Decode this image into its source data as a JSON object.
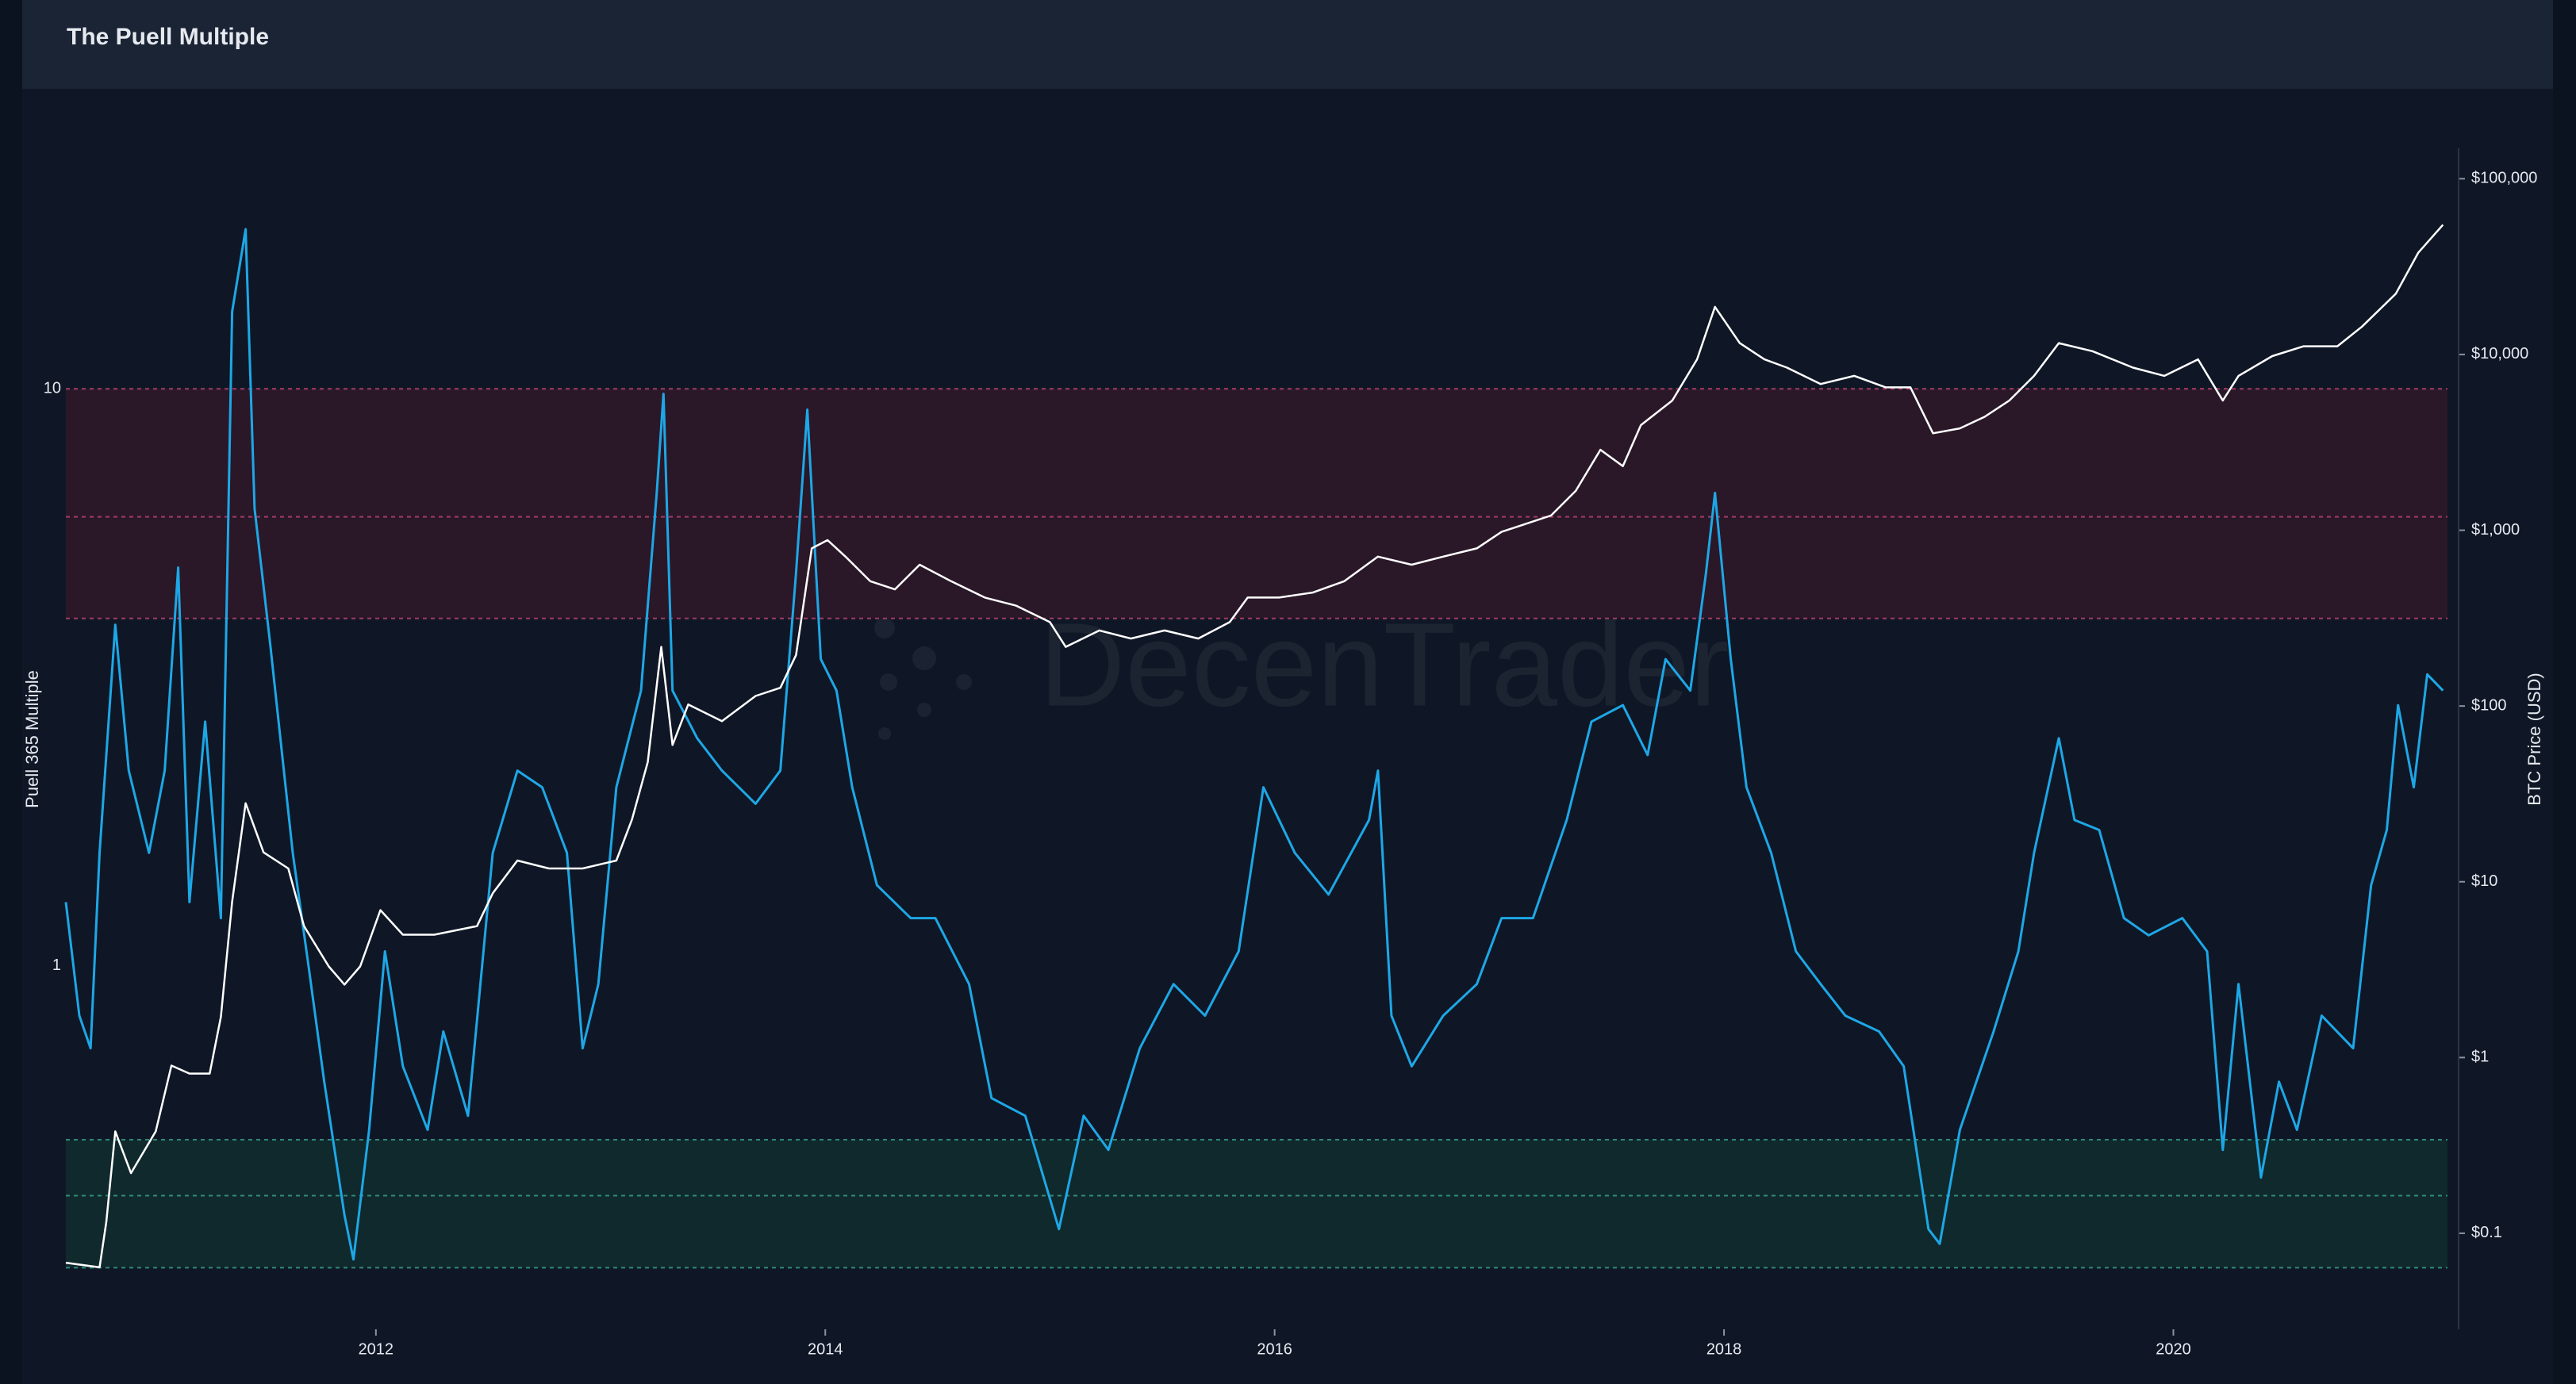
{
  "chart_data": {
    "type": "line",
    "title": "The Puell Multiple",
    "watermark": "DecenTrader",
    "y_label": "Puell 365 Multiple",
    "y2_label": "BTC Price (USD)",
    "log_scale": true,
    "grid": false,
    "xlim": [
      2010.62,
      2021.22
    ],
    "xticks": [
      2012,
      2014,
      2016,
      2018,
      2020
    ],
    "ylim": [
      0.25,
      24.5
    ],
    "yticks": [
      1,
      10
    ],
    "y2lim": [
      0.035,
      121000
    ],
    "y2ticks": [
      {
        "value": 0.1,
        "label": "$0.1"
      },
      {
        "value": 1,
        "label": "$1"
      },
      {
        "value": 10,
        "label": "$10"
      },
      {
        "value": 100,
        "label": "$100"
      },
      {
        "value": 1000,
        "label": "$1,000"
      },
      {
        "value": 10000,
        "label": "$10,000"
      },
      {
        "value": 100000,
        "label": "$100,000"
      }
    ],
    "zones": [
      {
        "lower": 4,
        "mid": 6,
        "upper": 10,
        "color": "#2a1828",
        "line_color": "#a03c64"
      },
      {
        "lower": 0.3,
        "mid": 0.4,
        "upper": 0.5,
        "color": "#10292c",
        "line_color": "#2f8a78"
      }
    ],
    "series": [
      {
        "color": "#1ea7e6",
        "axis": "y",
        "x": [
          2010.62,
          2010.68,
          2010.73,
          2010.77,
          2010.84,
          2010.9,
          2010.99,
          2011.06,
          2011.12,
          2011.17,
          2011.24,
          2011.31,
          2011.36,
          2011.42,
          2011.46,
          2011.53,
          2011.63,
          2011.7,
          2011.77,
          2011.86,
          2011.9,
          2011.97,
          2012.04,
          2012.12,
          2012.23,
          2012.3,
          2012.41,
          2012.52,
          2012.63,
          2012.74,
          2012.85,
          2012.92,
          2012.99,
          2013.07,
          2013.18,
          2013.25,
          2013.28,
          2013.32,
          2013.43,
          2013.54,
          2013.69,
          2013.8,
          2013.87,
          2013.92,
          2013.98,
          2014.05,
          2014.12,
          2014.23,
          2014.38,
          2014.49,
          2014.64,
          2014.74,
          2014.89,
          2015.04,
          2015.15,
          2015.26,
          2015.4,
          2015.55,
          2015.69,
          2015.84,
          2015.95,
          2016.09,
          2016.24,
          2016.42,
          2016.46,
          2016.52,
          2016.61,
          2016.75,
          2016.9,
          2017.01,
          2017.15,
          2017.3,
          2017.41,
          2017.55,
          2017.66,
          2017.74,
          2017.85,
          2017.92,
          2017.96,
          2018.03,
          2018.1,
          2018.21,
          2018.32,
          2018.43,
          2018.54,
          2018.69,
          2018.8,
          2018.91,
          2018.96,
          2019.05,
          2019.2,
          2019.31,
          2019.38,
          2019.49,
          2019.56,
          2019.67,
          2019.78,
          2019.89,
          2020.04,
          2020.15,
          2020.22,
          2020.29,
          2020.39,
          2020.47,
          2020.55,
          2020.66,
          2020.8,
          2020.88,
          2020.95,
          2021.0,
          2021.07,
          2021.13,
          2021.2
        ],
        "values": [
          1.29,
          0.82,
          0.72,
          1.57,
          3.9,
          2.18,
          1.57,
          2.18,
          4.9,
          1.29,
          2.65,
          1.21,
          13.6,
          18.9,
          6.2,
          3.6,
          1.57,
          1.0,
          0.63,
          0.37,
          0.31,
          0.52,
          1.06,
          0.67,
          0.52,
          0.77,
          0.55,
          1.57,
          2.18,
          2.04,
          1.57,
          0.72,
          0.93,
          2.04,
          3.0,
          6.6,
          9.8,
          3.0,
          2.48,
          2.18,
          1.91,
          2.18,
          4.8,
          9.2,
          3.4,
          3.0,
          2.04,
          1.38,
          1.21,
          1.21,
          0.93,
          0.59,
          0.55,
          0.35,
          0.55,
          0.48,
          0.72,
          0.93,
          0.82,
          1.06,
          2.04,
          1.57,
          1.33,
          1.79,
          2.18,
          0.82,
          0.67,
          0.82,
          0.93,
          1.21,
          1.21,
          1.79,
          2.65,
          2.83,
          2.32,
          3.4,
          3.0,
          4.8,
          6.6,
          3.4,
          2.04,
          1.57,
          1.06,
          0.93,
          0.82,
          0.77,
          0.67,
          0.35,
          0.33,
          0.52,
          0.77,
          1.06,
          1.57,
          2.48,
          1.79,
          1.72,
          1.21,
          1.13,
          1.21,
          1.06,
          0.48,
          0.93,
          0.43,
          0.63,
          0.52,
          0.82,
          0.72,
          1.38,
          1.72,
          2.83,
          2.04,
          3.2,
          3.0
        ]
      },
      {
        "color": "#ffffff",
        "axis": "y2",
        "x": [
          2010.62,
          2010.77,
          2010.8,
          2010.84,
          2010.91,
          2011.02,
          2011.09,
          2011.17,
          2011.26,
          2011.31,
          2011.36,
          2011.42,
          2011.5,
          2011.61,
          2011.68,
          2011.79,
          2011.86,
          2011.93,
          2012.02,
          2012.12,
          2012.26,
          2012.45,
          2012.52,
          2012.63,
          2012.77,
          2012.92,
          2013.07,
          2013.14,
          2013.21,
          2013.27,
          2013.32,
          2013.39,
          2013.54,
          2013.69,
          2013.8,
          2013.87,
          2013.94,
          2014.01,
          2014.09,
          2014.2,
          2014.31,
          2014.42,
          2014.56,
          2014.71,
          2014.85,
          2015.0,
          2015.07,
          2015.22,
          2015.36,
          2015.51,
          2015.66,
          2015.8,
          2015.88,
          2016.02,
          2016.17,
          2016.31,
          2016.46,
          2016.61,
          2016.75,
          2016.9,
          2017.01,
          2017.12,
          2017.23,
          2017.34,
          2017.45,
          2017.55,
          2017.63,
          2017.77,
          2017.88,
          2017.96,
          2018.07,
          2018.18,
          2018.28,
          2018.43,
          2018.58,
          2018.72,
          2018.83,
          2018.93,
          2019.05,
          2019.16,
          2019.27,
          2019.38,
          2019.49,
          2019.64,
          2019.82,
          2019.96,
          2020.11,
          2020.22,
          2020.29,
          2020.44,
          2020.58,
          2020.73,
          2020.84,
          2020.99,
          2021.09,
          2021.2
        ],
        "values": [
          0.068,
          0.064,
          0.116,
          0.38,
          0.22,
          0.38,
          0.9,
          0.81,
          0.81,
          1.7,
          7.7,
          28,
          14.7,
          11.9,
          5.6,
          3.3,
          2.6,
          3.3,
          6.9,
          5.0,
          5.0,
          5.6,
          8.6,
          13.2,
          11.9,
          11.9,
          13.2,
          22.7,
          48,
          217,
          60,
          102,
          82,
          114,
          127,
          195,
          789,
          879,
          708,
          513,
          461,
          637,
          513,
          414,
          372,
          300,
          217,
          269,
          242,
          269,
          242,
          300,
          414,
          414,
          442,
          513,
          708,
          637,
          708,
          789,
          979,
          1090,
          1213,
          1676,
          2870,
          2313,
          3963,
          5470,
          9380,
          18660,
          11610,
          9380,
          8420,
          6790,
          7560,
          6500,
          6500,
          3560,
          3800,
          4420,
          5470,
          7560,
          11610,
          10440,
          8420,
          7560,
          9380,
          5470,
          7560,
          9790,
          11140,
          11140,
          14420,
          22180,
          37930,
          54700
        ]
      }
    ]
  }
}
